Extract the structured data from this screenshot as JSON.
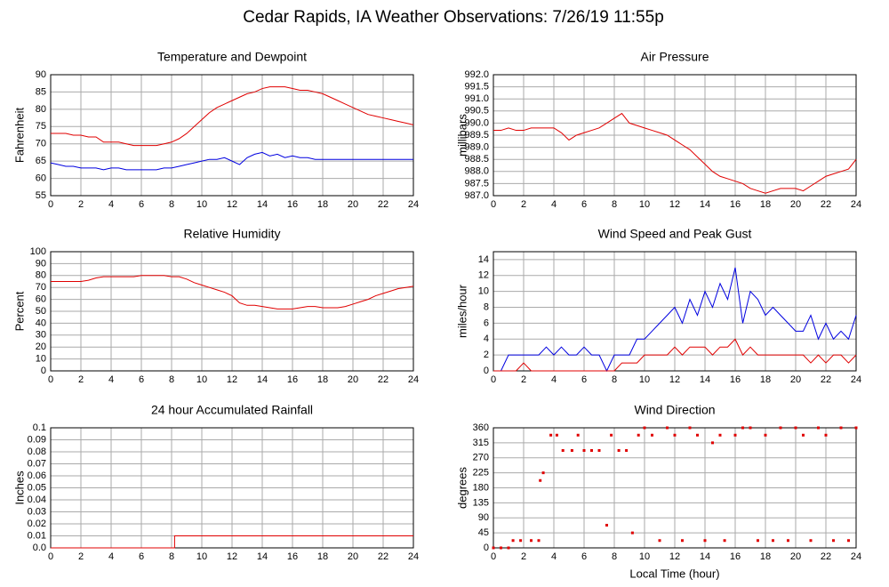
{
  "title": "Cedar Rapids, IA Weather Observations: 7/26/19 11:55p",
  "chart_data": [
    {
      "type": "line",
      "title": "Temperature and Dewpoint",
      "ylabel": "Fahrenheit",
      "grid": true,
      "x": [
        0,
        0.5,
        1,
        1.5,
        2,
        2.5,
        3,
        3.5,
        4,
        4.5,
        5,
        5.5,
        6,
        6.5,
        7,
        7.5,
        8,
        8.5,
        9,
        9.5,
        10,
        10.5,
        11,
        11.5,
        12,
        12.5,
        13,
        13.5,
        14,
        14.5,
        15,
        15.5,
        16,
        16.5,
        17,
        17.5,
        18,
        18.5,
        19,
        19.5,
        20,
        20.5,
        21,
        21.5,
        22,
        22.5,
        23,
        23.5,
        24
      ],
      "series": [
        {
          "color": "#e00000",
          "values": [
            73,
            73,
            73,
            72.5,
            72.5,
            72,
            72,
            70.5,
            70.5,
            70.5,
            70,
            69.5,
            69.5,
            69.5,
            69.5,
            70,
            70.5,
            71.5,
            73,
            75,
            77,
            79,
            80.5,
            81.5,
            82.5,
            83.5,
            84.5,
            85,
            86,
            86.5,
            86.5,
            86.5,
            86,
            85.5,
            85.5,
            85,
            84.5,
            83.5,
            82.5,
            81.5,
            80.5,
            79.5,
            78.5,
            78,
            77.5,
            77,
            76.5,
            76,
            75.5
          ]
        },
        {
          "color": "#0000e0",
          "values": [
            64.5,
            64,
            63.5,
            63.5,
            63,
            63,
            63,
            62.5,
            63,
            63,
            62.5,
            62.5,
            62.5,
            62.5,
            62.5,
            63,
            63,
            63.5,
            64,
            64.5,
            65,
            65.5,
            65.5,
            66,
            65,
            64,
            66,
            67,
            67.5,
            66.5,
            67,
            66,
            66.5,
            66,
            66,
            65.5,
            65.5,
            65.5,
            65.5,
            65.5,
            65.5,
            65.5,
            65.5,
            65.5,
            65.5,
            65.5,
            65.5,
            65.5,
            65.5
          ]
        }
      ],
      "xlim": [
        0,
        24
      ],
      "xticks": [
        0,
        2,
        4,
        6,
        8,
        10,
        12,
        14,
        16,
        18,
        20,
        22,
        24
      ],
      "ylim": [
        55,
        90
      ],
      "yticks": [
        55,
        60,
        65,
        70,
        75,
        80,
        85,
        90
      ]
    },
    {
      "type": "line",
      "title": "Air Pressure",
      "ylabel": "millibars",
      "grid": true,
      "x": [
        0,
        0.5,
        1,
        1.5,
        2,
        2.5,
        3,
        3.5,
        4,
        4.5,
        5,
        5.5,
        6,
        6.5,
        7,
        7.5,
        8,
        8.5,
        9,
        9.5,
        10,
        10.5,
        11,
        11.5,
        12,
        12.5,
        13,
        13.5,
        14,
        14.5,
        15,
        15.5,
        16,
        16.5,
        17,
        17.5,
        18,
        18.5,
        19,
        19.5,
        20,
        20.5,
        21,
        21.5,
        22,
        22.5,
        23,
        23.5,
        24
      ],
      "series": [
        {
          "color": "#e00000",
          "values": [
            989.7,
            989.7,
            989.8,
            989.7,
            989.7,
            989.8,
            989.8,
            989.8,
            989.8,
            989.6,
            989.3,
            989.5,
            989.6,
            989.7,
            989.8,
            990.0,
            990.2,
            990.4,
            990.0,
            989.9,
            989.8,
            989.7,
            989.6,
            989.5,
            989.3,
            989.1,
            988.9,
            988.6,
            988.3,
            988.0,
            987.8,
            987.7,
            987.6,
            987.5,
            987.3,
            987.2,
            987.1,
            987.2,
            987.3,
            987.3,
            987.3,
            987.2,
            987.4,
            987.6,
            987.8,
            987.9,
            988.0,
            988.1,
            988.5
          ]
        }
      ],
      "xlim": [
        0,
        24
      ],
      "xticks": [
        0,
        2,
        4,
        6,
        8,
        10,
        12,
        14,
        16,
        18,
        20,
        22,
        24
      ],
      "ylim": [
        987,
        992
      ],
      "yticks": [
        {
          "value": 987,
          "label": "987.0"
        },
        {
          "value": 987.5,
          "label": "987.5"
        },
        {
          "value": 988,
          "label": "988.0"
        },
        {
          "value": 988.5,
          "label": "988.5"
        },
        {
          "value": 989,
          "label": "989.0"
        },
        {
          "value": 989.5,
          "label": "989.5"
        },
        {
          "value": 990,
          "label": "990.0"
        },
        {
          "value": 990.5,
          "label": "990.5"
        },
        {
          "value": 991,
          "label": "991.0"
        },
        {
          "value": 991.5,
          "label": "991.5"
        },
        {
          "value": 992,
          "label": "992.0"
        }
      ]
    },
    {
      "type": "line",
      "title": "Relative Humidity",
      "ylabel": "Percent",
      "grid": true,
      "x": [
        0,
        0.5,
        1,
        1.5,
        2,
        2.5,
        3,
        3.5,
        4,
        4.5,
        5,
        5.5,
        6,
        6.5,
        7,
        7.5,
        8,
        8.5,
        9,
        9.5,
        10,
        10.5,
        11,
        11.5,
        12,
        12.5,
        13,
        13.5,
        14,
        14.5,
        15,
        15.5,
        16,
        16.5,
        17,
        17.5,
        18,
        18.5,
        19,
        19.5,
        20,
        20.5,
        21,
        21.5,
        22,
        22.5,
        23,
        23.5,
        24
      ],
      "series": [
        {
          "color": "#e00000",
          "values": [
            75,
            75,
            75,
            75,
            75,
            76,
            78,
            79,
            79,
            79,
            79,
            79,
            80,
            80,
            80,
            80,
            79,
            79,
            77,
            74,
            72,
            70,
            68,
            66,
            63,
            57,
            55,
            55,
            54,
            53,
            52,
            52,
            52,
            53,
            54,
            54,
            53,
            53,
            53,
            54,
            56,
            58,
            60,
            63,
            65,
            67,
            69,
            70,
            71
          ]
        }
      ],
      "xlim": [
        0,
        24
      ],
      "xticks": [
        0,
        2,
        4,
        6,
        8,
        10,
        12,
        14,
        16,
        18,
        20,
        22,
        24
      ],
      "ylim": [
        0,
        100
      ],
      "yticks": [
        0,
        10,
        20,
        30,
        40,
        50,
        60,
        70,
        80,
        90,
        100
      ]
    },
    {
      "type": "line",
      "title": "Wind Speed and Peak Gust",
      "ylabel": "miles/hour",
      "grid": true,
      "x": [
        0,
        0.5,
        1,
        1.5,
        2,
        2.5,
        3,
        3.5,
        4,
        4.5,
        5,
        5.5,
        6,
        6.5,
        7,
        7.5,
        8,
        8.5,
        9,
        9.5,
        10,
        10.5,
        11,
        11.5,
        12,
        12.5,
        13,
        13.5,
        14,
        14.5,
        15,
        15.5,
        16,
        16.5,
        17,
        17.5,
        18,
        18.5,
        19,
        19.5,
        20,
        20.5,
        21,
        21.5,
        22,
        22.5,
        23,
        23.5,
        24
      ],
      "series": [
        {
          "color": "#0000e0",
          "values": [
            0,
            0,
            2,
            2,
            2,
            2,
            2,
            3,
            2,
            3,
            2,
            2,
            3,
            2,
            2,
            0,
            2,
            2,
            2,
            4,
            4,
            5,
            6,
            7,
            8,
            6,
            9,
            7,
            10,
            8,
            11,
            9,
            13,
            6,
            10,
            9,
            7,
            8,
            7,
            6,
            5,
            5,
            7,
            4,
            6,
            4,
            5,
            4,
            7
          ]
        },
        {
          "color": "#e00000",
          "values": [
            0,
            0,
            0,
            0,
            1,
            0,
            0,
            0,
            0,
            0,
            0,
            0,
            0,
            0,
            0,
            0,
            0,
            1,
            1,
            1,
            2,
            2,
            2,
            2,
            3,
            2,
            3,
            3,
            3,
            2,
            3,
            3,
            4,
            2,
            3,
            2,
            2,
            2,
            2,
            2,
            2,
            2,
            1,
            2,
            1,
            2,
            2,
            1,
            2
          ]
        }
      ],
      "xlim": [
        0,
        24
      ],
      "xticks": [
        0,
        2,
        4,
        6,
        8,
        10,
        12,
        14,
        16,
        18,
        20,
        22,
        24
      ],
      "ylim": [
        0,
        15
      ],
      "yticks": [
        0,
        2,
        4,
        6,
        8,
        10,
        12,
        14
      ]
    },
    {
      "type": "line",
      "title": "24 hour Accumulated Rainfall",
      "ylabel": "Inches",
      "grid": true,
      "x": [
        0,
        8.2,
        8.2,
        24
      ],
      "series": [
        {
          "color": "#e00000",
          "values": [
            0,
            0,
            0.01,
            0.01
          ]
        }
      ],
      "xlim": [
        0,
        24
      ],
      "xticks": [
        0,
        2,
        4,
        6,
        8,
        10,
        12,
        14,
        16,
        18,
        20,
        22,
        24
      ],
      "ylim": [
        0,
        0.1
      ],
      "yticks": [
        {
          "value": 0,
          "label": "0.0"
        },
        0.01,
        0.02,
        0.03,
        0.04,
        0.05,
        0.06,
        0.07,
        0.08,
        0.09,
        0.1
      ]
    },
    {
      "type": "scatter",
      "title": "Wind Direction",
      "ylabel": "degrees",
      "xlabel": "Local Time (hour)",
      "grid": true,
      "color": "#e00000",
      "x": [
        0,
        0.5,
        1,
        1.3,
        1.8,
        2.5,
        3,
        3.1,
        3.3,
        3.8,
        4.2,
        4.6,
        5.2,
        5.6,
        6,
        6.5,
        7,
        7.5,
        7.8,
        8.3,
        8.8,
        9.2,
        9.6,
        10,
        10.5,
        11,
        11.5,
        12,
        12.5,
        13,
        13.5,
        14,
        14.5,
        15,
        15.3,
        16,
        16.5,
        17,
        17.5,
        18,
        18.5,
        19,
        19.5,
        20,
        20.5,
        21,
        21.5,
        22,
        22.5,
        23,
        23.5,
        24
      ],
      "values": [
        0,
        0,
        0,
        22,
        22,
        22,
        22,
        202,
        225,
        338,
        338,
        292,
        292,
        338,
        292,
        292,
        292,
        68,
        338,
        292,
        292,
        45,
        338,
        360,
        338,
        22,
        360,
        338,
        22,
        360,
        338,
        22,
        315,
        338,
        22,
        338,
        360,
        360,
        22,
        338,
        22,
        360,
        22,
        360,
        338,
        22,
        360,
        338,
        22,
        360,
        22,
        360
      ],
      "xlim": [
        0,
        24
      ],
      "xticks": [
        0,
        2,
        4,
        6,
        8,
        10,
        12,
        14,
        16,
        18,
        20,
        22,
        24
      ],
      "ylim": [
        0,
        360
      ],
      "yticks": [
        0,
        45,
        90,
        135,
        180,
        225,
        270,
        315,
        360
      ]
    }
  ]
}
